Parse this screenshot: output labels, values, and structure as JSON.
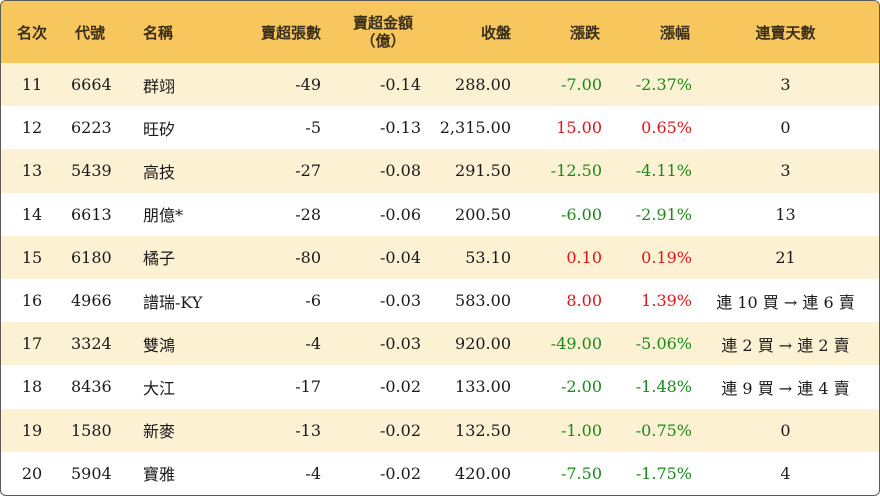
{
  "headers": {
    "rank": "名次",
    "code": "代號",
    "name": "名稱",
    "net_sell_lots": "賣超張數",
    "net_sell_amount_l1": "賣超金額",
    "net_sell_amount_l2": "（億）",
    "close": "收盤",
    "change": "漲跌",
    "change_pct": "漲幅",
    "consec_days": "連賣天數"
  },
  "rows": [
    {
      "rank": "11",
      "code": "6664",
      "name": "群翊",
      "lots": "-49",
      "amount": "-0.14",
      "close": "288.00",
      "change": "-7.00",
      "pct": "-2.37%",
      "days": "3",
      "dir": "down"
    },
    {
      "rank": "12",
      "code": "6223",
      "name": "旺矽",
      "lots": "-5",
      "amount": "-0.13",
      "close": "2,315.00",
      "change": "15.00",
      "pct": "0.65%",
      "days": "0",
      "dir": "up"
    },
    {
      "rank": "13",
      "code": "5439",
      "name": "高技",
      "lots": "-27",
      "amount": "-0.08",
      "close": "291.50",
      "change": "-12.50",
      "pct": "-4.11%",
      "days": "3",
      "dir": "down"
    },
    {
      "rank": "14",
      "code": "6613",
      "name": "朋億*",
      "lots": "-28",
      "amount": "-0.06",
      "close": "200.50",
      "change": "-6.00",
      "pct": "-2.91%",
      "days": "13",
      "dir": "down"
    },
    {
      "rank": "15",
      "code": "6180",
      "name": "橘子",
      "lots": "-80",
      "amount": "-0.04",
      "close": "53.10",
      "change": "0.10",
      "pct": "0.19%",
      "days": "21",
      "dir": "up"
    },
    {
      "rank": "16",
      "code": "4966",
      "name": "譜瑞-KY",
      "lots": "-6",
      "amount": "-0.03",
      "close": "583.00",
      "change": "8.00",
      "pct": "1.39%",
      "days": "連 10 買 → 連 6 賣",
      "dir": "up"
    },
    {
      "rank": "17",
      "code": "3324",
      "name": "雙鴻",
      "lots": "-4",
      "amount": "-0.03",
      "close": "920.00",
      "change": "-49.00",
      "pct": "-5.06%",
      "days": "連 2 買 → 連 2 賣",
      "dir": "down"
    },
    {
      "rank": "18",
      "code": "8436",
      "name": "大江",
      "lots": "-17",
      "amount": "-0.02",
      "close": "133.00",
      "change": "-2.00",
      "pct": "-1.48%",
      "days": "連 9 買 → 連 4 賣",
      "dir": "down"
    },
    {
      "rank": "19",
      "code": "1580",
      "name": "新麥",
      "lots": "-13",
      "amount": "-0.02",
      "close": "132.50",
      "change": "-1.00",
      "pct": "-0.75%",
      "days": "0",
      "dir": "down"
    },
    {
      "rank": "20",
      "code": "5904",
      "name": "寶雅",
      "lots": "-4",
      "amount": "-0.02",
      "close": "420.00",
      "change": "-7.50",
      "pct": "-1.75%",
      "days": "4",
      "dir": "down"
    }
  ],
  "colors": {
    "header_bg": "#f7c65c",
    "alt_row_bg": "#fdf1d4",
    "up": "#e0141c",
    "down": "#1a8a1a"
  }
}
